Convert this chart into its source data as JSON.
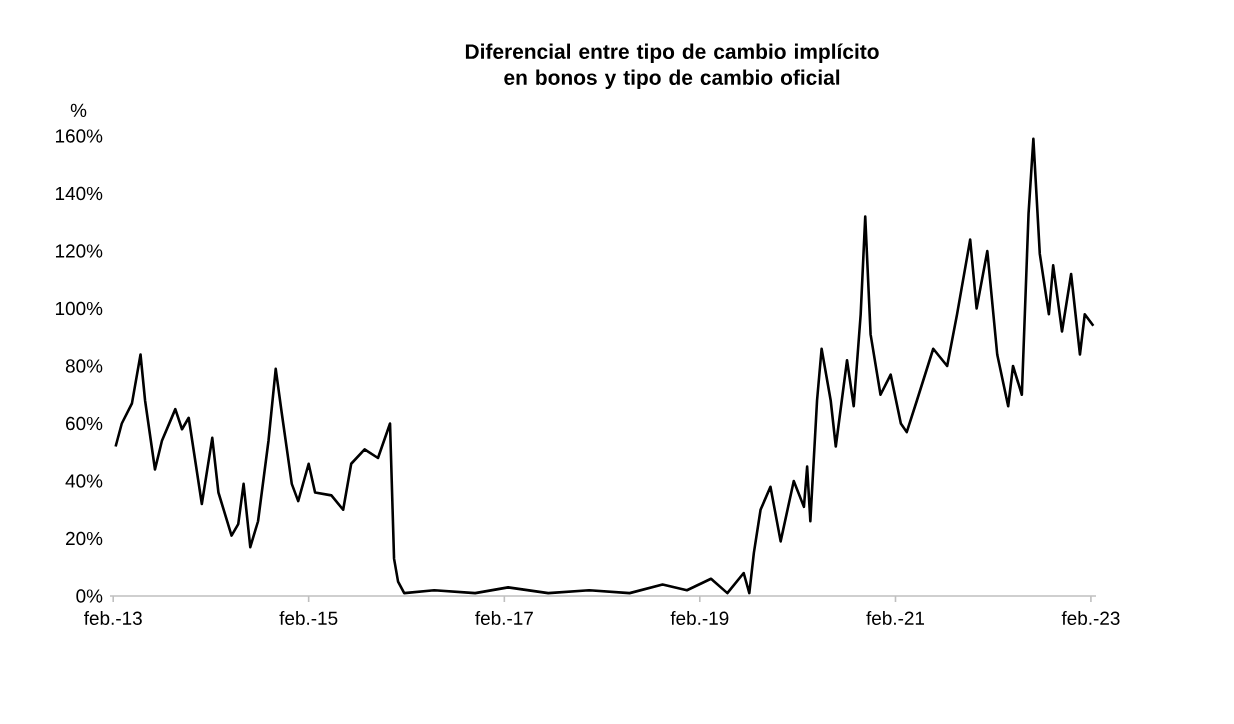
{
  "chart_data": {
    "type": "line",
    "title": "Diferencial entre tipo de cambio implícito en bonos y tipo de cambio oficial",
    "ylabel": "%",
    "xlim": [
      "2013-01-20",
      "2023-02-20"
    ],
    "xticks": [
      {
        "value": "2013-02-01",
        "label": "feb.-13"
      },
      {
        "value": "2015-02-01",
        "label": "feb.-15"
      },
      {
        "value": "2017-02-01",
        "label": "feb.-17"
      },
      {
        "value": "2019-02-01",
        "label": "feb.-19"
      },
      {
        "value": "2021-02-01",
        "label": "feb.-21"
      },
      {
        "value": "2023-02-01",
        "label": "feb.-23"
      }
    ],
    "ylim": [
      0,
      160
    ],
    "yticks": [
      {
        "value": 0,
        "label": "0%"
      },
      {
        "value": 20,
        "label": "20%"
      },
      {
        "value": 40,
        "label": "40%"
      },
      {
        "value": 60,
        "label": "60%"
      },
      {
        "value": 80,
        "label": "80%"
      },
      {
        "value": 100,
        "label": "100%"
      },
      {
        "value": 120,
        "label": "120%"
      },
      {
        "value": 140,
        "label": "140%"
      },
      {
        "value": 160,
        "label": "160%"
      }
    ],
    "marker": "none",
    "line_style": "solid",
    "x": [
      "2013-02-10",
      "2013-03-05",
      "2013-04-12",
      "2013-05-14",
      "2013-05-31",
      "2013-07-07",
      "2013-08-02",
      "2013-09-21",
      "2013-10-16",
      "2013-11-10",
      "2013-12-29",
      "2014-02-06",
      "2014-03-01",
      "2014-04-19",
      "2014-05-14",
      "2014-06-03",
      "2014-06-28",
      "2014-07-27",
      "2014-09-04",
      "2014-10-01",
      "2014-10-23",
      "2014-11-30",
      "2014-12-24",
      "2015-02-01",
      "2015-02-25",
      "2015-04-27",
      "2015-06-10",
      "2015-07-10",
      "2015-08-29",
      "2015-10-18",
      "2015-12-02",
      "2015-12-17",
      "2016-01-01",
      "2016-01-24",
      "2016-05-15",
      "2016-10-15",
      "2017-02-15",
      "2017-07-15",
      "2017-12-15",
      "2018-05-15",
      "2018-09-15",
      "2018-12-15",
      "2019-03-15",
      "2019-05-15",
      "2019-07-15",
      "2019-08-05",
      "2019-08-22",
      "2019-09-16",
      "2019-10-23",
      "2019-11-30",
      "2020-01-18",
      "2020-02-25",
      "2020-03-08",
      "2020-03-20",
      "2020-04-14",
      "2020-05-01",
      "2020-06-04",
      "2020-06-23",
      "2020-08-04",
      "2020-08-29",
      "2020-09-24",
      "2020-10-11",
      "2020-10-31",
      "2020-12-07",
      "2021-01-14",
      "2021-02-21",
      "2021-03-15",
      "2021-04-22",
      "2021-06-22",
      "2021-08-13",
      "2021-09-19",
      "2021-11-07",
      "2021-12-01",
      "2022-01-10",
      "2022-02-16",
      "2022-03-29",
      "2022-04-16",
      "2022-05-19",
      "2022-06-13",
      "2022-07-01",
      "2022-07-25",
      "2022-08-28",
      "2022-09-13",
      "2022-10-16",
      "2022-11-19",
      "2022-12-22",
      "2023-01-09",
      "2023-02-10"
    ],
    "series": [
      {
        "color": "#000000",
        "values": [
          52,
          60,
          67,
          84,
          68,
          44,
          54,
          65,
          58,
          62,
          32,
          55,
          36,
          21,
          25,
          39,
          17,
          26,
          54,
          79,
          64,
          39,
          33,
          46,
          36,
          35,
          30,
          46,
          51,
          48,
          60,
          13,
          5,
          1,
          2,
          1,
          3,
          1,
          2,
          1,
          4,
          2,
          6,
          1,
          8,
          1,
          15,
          30,
          38,
          19,
          40,
          31,
          45,
          26,
          68,
          86,
          68,
          52,
          82,
          66,
          98,
          132,
          91,
          70,
          77,
          60,
          57,
          68,
          86,
          80,
          98,
          124,
          100,
          120,
          84,
          66,
          80,
          70,
          133,
          159,
          119,
          98,
          115,
          92,
          112,
          84,
          98,
          94
        ]
      }
    ]
  }
}
